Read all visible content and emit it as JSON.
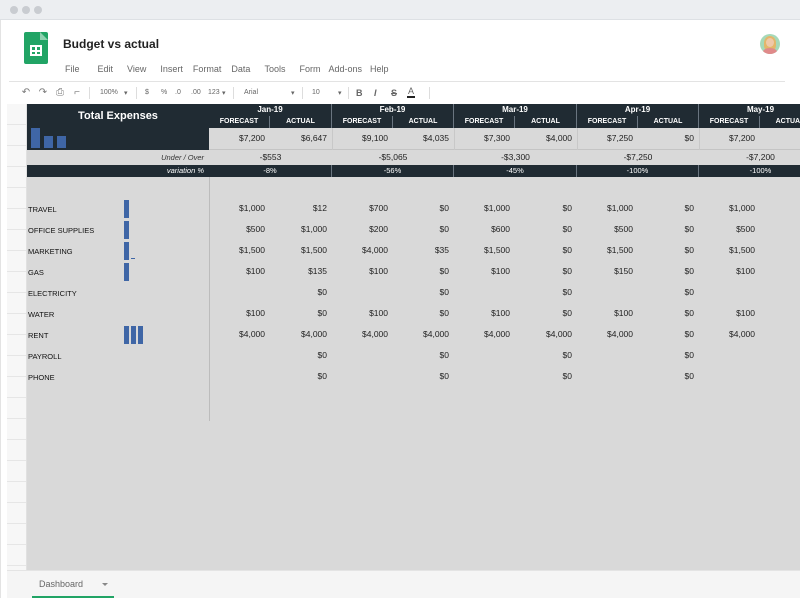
{
  "document": {
    "title": "Budget vs actual"
  },
  "menu": [
    "File",
    "Edit",
    "View",
    "Insert",
    "Format",
    "Data",
    "Tools",
    "Form",
    "Add-ons",
    "Help"
  ],
  "toolbar": {
    "zoom": "100%",
    "currency": "$",
    "percent": "%",
    "dec_less": ".0",
    "dec_more": ".00",
    "format_more": "123",
    "font": "Arial",
    "font_size": "10",
    "bold": "B",
    "italic": "I",
    "strike": "S",
    "text_color": "A"
  },
  "summary": {
    "title": "Total Expenses",
    "under_over_label": "Under / Over",
    "variation_label": "variation %"
  },
  "months": [
    {
      "name": "Jan-19",
      "forecast": "$7,200",
      "actual": "$6,647",
      "under_over": "-$553",
      "variation": "-8%"
    },
    {
      "name": "Feb-19",
      "forecast": "$9,100",
      "actual": "$4,035",
      "under_over": "-$5,065",
      "variation": "-56%"
    },
    {
      "name": "Mar-19",
      "forecast": "$7,300",
      "actual": "$4,000",
      "under_over": "-$3,300",
      "variation": "-45%"
    },
    {
      "name": "Apr-19",
      "forecast": "$7,250",
      "actual": "$0",
      "under_over": "-$7,250",
      "variation": "-100%"
    },
    {
      "name": "May-19",
      "forecast": "$7,200",
      "actual": "",
      "under_over": "-$7,200",
      "variation": "-100%"
    }
  ],
  "column_labels": {
    "forecast": "FORECAST",
    "actual": "ACTUAL"
  },
  "categories": [
    {
      "name": "TRAVEL",
      "values": [
        "$1,000",
        "$12",
        "$700",
        "$0",
        "$1,000",
        "$0",
        "$1,000",
        "$0",
        "$1,000"
      ]
    },
    {
      "name": "OFFICE SUPPLIES",
      "values": [
        "$500",
        "$1,000",
        "$200",
        "$0",
        "$600",
        "$0",
        "$500",
        "$0",
        "$500"
      ]
    },
    {
      "name": "MARKETING",
      "values": [
        "$1,500",
        "$1,500",
        "$4,000",
        "$35",
        "$1,500",
        "$0",
        "$1,500",
        "$0",
        "$1,500"
      ]
    },
    {
      "name": "GAS",
      "values": [
        "$100",
        "$135",
        "$100",
        "$0",
        "$100",
        "$0",
        "$150",
        "$0",
        "$100"
      ]
    },
    {
      "name": "ELECTRICITY",
      "values": [
        "",
        "$0",
        "",
        "$0",
        "",
        "$0",
        "",
        "$0",
        ""
      ]
    },
    {
      "name": "WATER",
      "values": [
        "$100",
        "$0",
        "$100",
        "$0",
        "$100",
        "$0",
        "$100",
        "$0",
        "$100"
      ]
    },
    {
      "name": "RENT",
      "values": [
        "$4,000",
        "$4,000",
        "$4,000",
        "$4,000",
        "$4,000",
        "$4,000",
        "$4,000",
        "$0",
        "$4,000"
      ]
    },
    {
      "name": "PAYROLL",
      "values": [
        "",
        "$0",
        "",
        "$0",
        "",
        "$0",
        "",
        "$0",
        ""
      ]
    },
    {
      "name": "PHONE",
      "values": [
        "",
        "$0",
        "",
        "$0",
        "",
        "$0",
        "",
        "$0",
        ""
      ]
    }
  ],
  "sheet_tabs": [
    {
      "label": "Dashboard"
    }
  ]
}
